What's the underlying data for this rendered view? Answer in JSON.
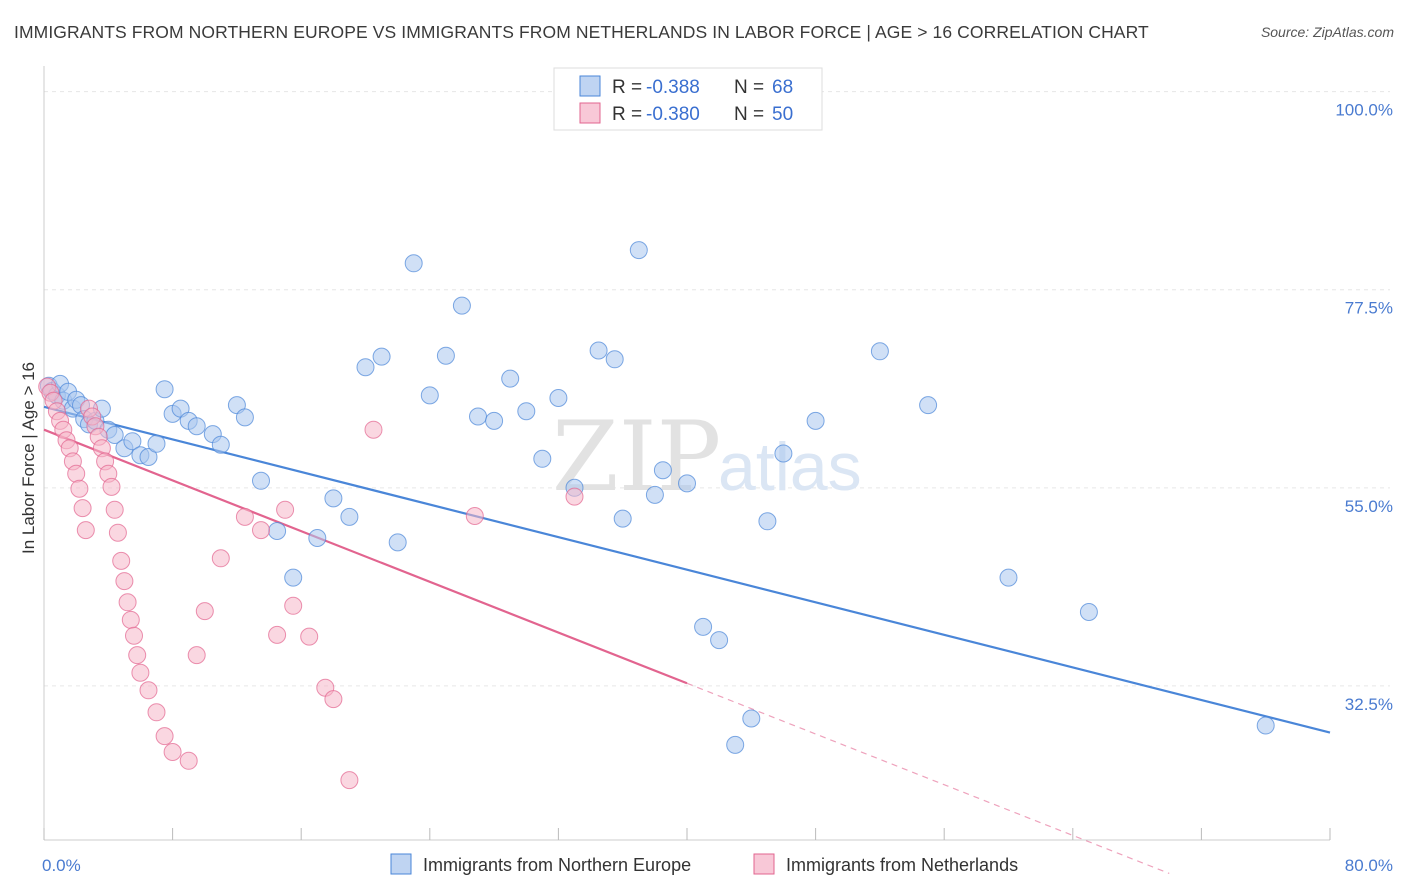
{
  "header": {
    "title": "IMMIGRANTS FROM NORTHERN EUROPE VS IMMIGRANTS FROM NETHERLANDS IN LABOR FORCE | AGE > 16 CORRELATION CHART",
    "source": "Source: ZipAtlas.com"
  },
  "watermark": {
    "part1": "ZIP",
    "part2": "atlas"
  },
  "legend_top": [
    {
      "r_label": "R =",
      "r_value": "-0.388",
      "n_label": "N =",
      "n_value": "68",
      "color": "#a9c6ee"
    },
    {
      "r_label": "R =",
      "r_value": "-0.380",
      "n_label": "N =",
      "n_value": "50",
      "color": "#f5b6c9"
    }
  ],
  "chart_data": {
    "type": "scatter",
    "title": "IMMIGRANTS FROM NORTHERN EUROPE VS IMMIGRANTS FROM NETHERLANDS IN LABOR FORCE | AGE > 16 CORRELATION CHART",
    "xlabel": "",
    "ylabel": "In Labor Force | Age > 16",
    "xlim": [
      0,
      80
    ],
    "ylim": [
      15,
      102
    ],
    "x_tick_labels": [
      {
        "value": 0,
        "label": "0.0%"
      },
      {
        "value": 80,
        "label": "80.0%"
      }
    ],
    "y_tick_labels": [
      {
        "value": 100,
        "label": "100.0%"
      },
      {
        "value": 77.5,
        "label": "77.5%"
      },
      {
        "value": 55,
        "label": "55.0%"
      },
      {
        "value": 32.5,
        "label": "32.5%"
      }
    ],
    "grid": true,
    "legend_position": "top-center",
    "series": [
      {
        "name": "Immigrants from Northern Europe",
        "color": "#4a86d8",
        "fill": "#a9c6ee",
        "trend": {
          "x": [
            0,
            80
          ],
          "y": [
            64.2,
            27.2
          ],
          "style": "solid"
        },
        "points": [
          [
            0.3,
            66.6
          ],
          [
            0.5,
            66.0
          ],
          [
            0.8,
            65.5
          ],
          [
            1.0,
            66.8
          ],
          [
            1.2,
            64.9
          ],
          [
            1.5,
            65.9
          ],
          [
            1.8,
            64.0
          ],
          [
            2.0,
            65.0
          ],
          [
            2.3,
            64.4
          ],
          [
            2.5,
            62.8
          ],
          [
            2.8,
            62.2
          ],
          [
            3.2,
            62.6
          ],
          [
            3.6,
            64.0
          ],
          [
            4.0,
            61.6
          ],
          [
            4.4,
            61.0
          ],
          [
            5.0,
            59.5
          ],
          [
            5.5,
            60.3
          ],
          [
            6.0,
            58.7
          ],
          [
            6.5,
            58.5
          ],
          [
            7.0,
            60.0
          ],
          [
            7.5,
            66.2
          ],
          [
            8.0,
            63.4
          ],
          [
            8.5,
            64.0
          ],
          [
            9.0,
            62.6
          ],
          [
            9.5,
            62.0
          ],
          [
            10.5,
            61.1
          ],
          [
            11.0,
            59.9
          ],
          [
            12.0,
            64.4
          ],
          [
            12.5,
            63.0
          ],
          [
            13.5,
            55.8
          ],
          [
            14.5,
            50.1
          ],
          [
            15.5,
            44.8
          ],
          [
            17.0,
            49.3
          ],
          [
            18.0,
            53.8
          ],
          [
            19.0,
            51.7
          ],
          [
            20.0,
            68.7
          ],
          [
            21.0,
            69.9
          ],
          [
            22.0,
            48.8
          ],
          [
            23.0,
            80.5
          ],
          [
            24.0,
            65.5
          ],
          [
            25.0,
            70.0
          ],
          [
            26.0,
            75.7
          ],
          [
            27.0,
            63.1
          ],
          [
            28.0,
            62.6
          ],
          [
            29.0,
            67.4
          ],
          [
            30.0,
            63.7
          ],
          [
            31.0,
            58.3
          ],
          [
            32.0,
            65.2
          ],
          [
            33.0,
            55.0
          ],
          [
            34.5,
            70.6
          ],
          [
            35.5,
            69.6
          ],
          [
            36.0,
            51.5
          ],
          [
            37.0,
            82.0
          ],
          [
            38.0,
            54.2
          ],
          [
            38.5,
            57.0
          ],
          [
            40.0,
            55.5
          ],
          [
            41.0,
            39.2
          ],
          [
            42.0,
            37.7
          ],
          [
            43.0,
            25.8
          ],
          [
            44.0,
            28.8
          ],
          [
            45.0,
            51.2
          ],
          [
            46.0,
            58.9
          ],
          [
            48.0,
            62.6
          ],
          [
            52.0,
            70.5
          ],
          [
            55.0,
            64.4
          ],
          [
            60.0,
            44.8
          ],
          [
            65.0,
            40.9
          ],
          [
            76.0,
            28.0
          ]
        ]
      },
      {
        "name": "Immigrants from Netherlands",
        "color": "#e2648f",
        "fill": "#f5b6c9",
        "trend": {
          "x": [
            0,
            40
          ],
          "y": [
            61.6,
            32.8
          ],
          "style": "solid"
        },
        "trend_extension": {
          "x": [
            40,
            70
          ],
          "y": [
            32.8,
            11.2
          ],
          "style": "dashed"
        },
        "points": [
          [
            0.2,
            66.5
          ],
          [
            0.4,
            65.8
          ],
          [
            0.6,
            64.9
          ],
          [
            0.8,
            63.7
          ],
          [
            1.0,
            62.6
          ],
          [
            1.2,
            61.6
          ],
          [
            1.4,
            60.4
          ],
          [
            1.6,
            59.5
          ],
          [
            1.8,
            58.0
          ],
          [
            2.0,
            56.6
          ],
          [
            2.2,
            54.9
          ],
          [
            2.4,
            52.7
          ],
          [
            2.6,
            50.2
          ],
          [
            2.8,
            64.0
          ],
          [
            3.0,
            63.1
          ],
          [
            3.2,
            62.0
          ],
          [
            3.4,
            60.8
          ],
          [
            3.6,
            59.5
          ],
          [
            3.8,
            58.0
          ],
          [
            4.0,
            56.6
          ],
          [
            4.2,
            55.1
          ],
          [
            4.4,
            52.5
          ],
          [
            4.6,
            49.9
          ],
          [
            4.8,
            46.7
          ],
          [
            5.0,
            44.4
          ],
          [
            5.2,
            42.0
          ],
          [
            5.4,
            40.0
          ],
          [
            5.6,
            38.2
          ],
          [
            5.8,
            36.0
          ],
          [
            6.0,
            34.0
          ],
          [
            6.5,
            32.0
          ],
          [
            7.0,
            29.5
          ],
          [
            7.5,
            26.8
          ],
          [
            8.0,
            25.0
          ],
          [
            9.0,
            24.0
          ],
          [
            9.5,
            36.0
          ],
          [
            10.0,
            41.0
          ],
          [
            11.0,
            47.0
          ],
          [
            12.5,
            51.7
          ],
          [
            13.5,
            50.2
          ],
          [
            14.5,
            38.3
          ],
          [
            15.0,
            52.5
          ],
          [
            15.5,
            41.6
          ],
          [
            16.5,
            38.1
          ],
          [
            17.5,
            32.3
          ],
          [
            18.0,
            31.0
          ],
          [
            19.0,
            21.8
          ],
          [
            20.5,
            61.6
          ],
          [
            26.8,
            51.8
          ],
          [
            33.0,
            54.0
          ]
        ]
      }
    ]
  },
  "legend_bottom": [
    {
      "label": "Immigrants from Northern Europe",
      "color": "#a9c6ee"
    },
    {
      "label": "Immigrants from Netherlands",
      "color": "#f5b6c9"
    }
  ]
}
